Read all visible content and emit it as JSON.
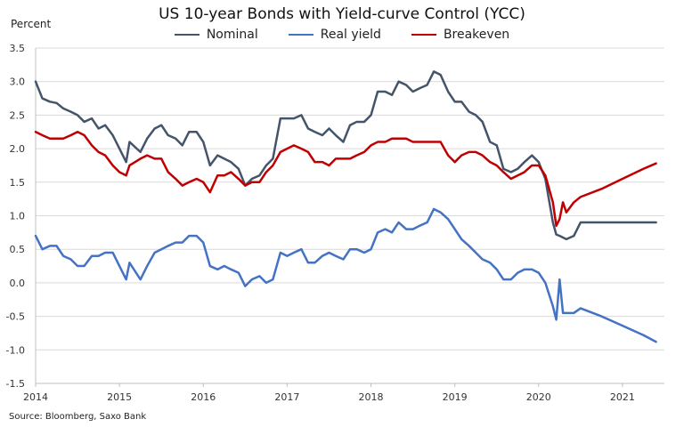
{
  "chart_data": {
    "type": "line",
    "title": "US 10-year Bonds with Yield-curve Control (YCC)",
    "y_unit": "Percent",
    "ylim": [
      -1.5,
      3.5
    ],
    "xlim": [
      2014,
      2021.5
    ],
    "y_ticks": [
      "3.5",
      "3.0",
      "2.5",
      "2.0",
      "1.5",
      "1.0",
      "0.5",
      "0.0",
      "-0.5",
      "-1.0",
      "-1.5"
    ],
    "x_ticks": [
      "2014",
      "2015",
      "2016",
      "2017",
      "2018",
      "2019",
      "2020",
      "2021"
    ],
    "grid": true,
    "legend": "top-center",
    "source": "Source: Bloomberg, Saxo Bank",
    "series": [
      {
        "name": "Nominal",
        "color": "#44546a",
        "points": [
          [
            2014.0,
            3.0
          ],
          [
            2014.08,
            2.75
          ],
          [
            2014.17,
            2.7
          ],
          [
            2014.25,
            2.68
          ],
          [
            2014.33,
            2.6
          ],
          [
            2014.42,
            2.55
          ],
          [
            2014.5,
            2.5
          ],
          [
            2014.58,
            2.4
          ],
          [
            2014.67,
            2.45
          ],
          [
            2014.75,
            2.3
          ],
          [
            2014.83,
            2.35
          ],
          [
            2014.92,
            2.2
          ],
          [
            2015.0,
            2.0
          ],
          [
            2015.08,
            1.8
          ],
          [
            2015.12,
            2.1
          ],
          [
            2015.25,
            1.95
          ],
          [
            2015.33,
            2.15
          ],
          [
            2015.42,
            2.3
          ],
          [
            2015.5,
            2.35
          ],
          [
            2015.58,
            2.2
          ],
          [
            2015.67,
            2.15
          ],
          [
            2015.75,
            2.05
          ],
          [
            2015.83,
            2.25
          ],
          [
            2015.92,
            2.25
          ],
          [
            2016.0,
            2.1
          ],
          [
            2016.08,
            1.75
          ],
          [
            2016.17,
            1.9
          ],
          [
            2016.25,
            1.85
          ],
          [
            2016.33,
            1.8
          ],
          [
            2016.42,
            1.7
          ],
          [
            2016.5,
            1.45
          ],
          [
            2016.58,
            1.55
          ],
          [
            2016.67,
            1.6
          ],
          [
            2016.75,
            1.75
          ],
          [
            2016.83,
            1.85
          ],
          [
            2016.92,
            2.45
          ],
          [
            2017.0,
            2.45
          ],
          [
            2017.08,
            2.45
          ],
          [
            2017.17,
            2.5
          ],
          [
            2017.25,
            2.3
          ],
          [
            2017.33,
            2.25
          ],
          [
            2017.42,
            2.2
          ],
          [
            2017.5,
            2.3
          ],
          [
            2017.58,
            2.2
          ],
          [
            2017.67,
            2.1
          ],
          [
            2017.75,
            2.35
          ],
          [
            2017.83,
            2.4
          ],
          [
            2017.92,
            2.4
          ],
          [
            2018.0,
            2.5
          ],
          [
            2018.08,
            2.85
          ],
          [
            2018.17,
            2.85
          ],
          [
            2018.25,
            2.8
          ],
          [
            2018.33,
            3.0
          ],
          [
            2018.42,
            2.95
          ],
          [
            2018.5,
            2.85
          ],
          [
            2018.58,
            2.9
          ],
          [
            2018.67,
            2.95
          ],
          [
            2018.75,
            3.15
          ],
          [
            2018.83,
            3.1
          ],
          [
            2018.92,
            2.85
          ],
          [
            2019.0,
            2.7
          ],
          [
            2019.08,
            2.7
          ],
          [
            2019.17,
            2.55
          ],
          [
            2019.25,
            2.5
          ],
          [
            2019.33,
            2.4
          ],
          [
            2019.42,
            2.1
          ],
          [
            2019.5,
            2.05
          ],
          [
            2019.58,
            1.7
          ],
          [
            2019.67,
            1.65
          ],
          [
            2019.75,
            1.7
          ],
          [
            2019.83,
            1.8
          ],
          [
            2019.92,
            1.9
          ],
          [
            2020.0,
            1.8
          ],
          [
            2020.08,
            1.55
          ],
          [
            2020.17,
            0.9
          ],
          [
            2020.21,
            0.72
          ],
          [
            2020.25,
            0.7
          ],
          [
            2020.33,
            0.65
          ],
          [
            2020.42,
            0.7
          ],
          [
            2020.5,
            0.9
          ],
          [
            2020.75,
            0.9
          ],
          [
            2021.0,
            0.9
          ],
          [
            2021.25,
            0.9
          ],
          [
            2021.4,
            0.9
          ]
        ]
      },
      {
        "name": "Real yield",
        "color": "#4472c4",
        "points": [
          [
            2014.0,
            0.7
          ],
          [
            2014.08,
            0.5
          ],
          [
            2014.17,
            0.55
          ],
          [
            2014.25,
            0.55
          ],
          [
            2014.33,
            0.4
          ],
          [
            2014.42,
            0.35
          ],
          [
            2014.5,
            0.25
          ],
          [
            2014.58,
            0.25
          ],
          [
            2014.67,
            0.4
          ],
          [
            2014.75,
            0.4
          ],
          [
            2014.83,
            0.45
          ],
          [
            2014.92,
            0.45
          ],
          [
            2015.0,
            0.25
          ],
          [
            2015.08,
            0.05
          ],
          [
            2015.12,
            0.3
          ],
          [
            2015.25,
            0.05
          ],
          [
            2015.33,
            0.25
          ],
          [
            2015.42,
            0.45
          ],
          [
            2015.5,
            0.5
          ],
          [
            2015.58,
            0.55
          ],
          [
            2015.67,
            0.6
          ],
          [
            2015.75,
            0.6
          ],
          [
            2015.83,
            0.7
          ],
          [
            2015.92,
            0.7
          ],
          [
            2016.0,
            0.6
          ],
          [
            2016.08,
            0.25
          ],
          [
            2016.17,
            0.2
          ],
          [
            2016.25,
            0.25
          ],
          [
            2016.33,
            0.2
          ],
          [
            2016.42,
            0.15
          ],
          [
            2016.5,
            -0.05
          ],
          [
            2016.58,
            0.05
          ],
          [
            2016.67,
            0.1
          ],
          [
            2016.75,
            0.0
          ],
          [
            2016.83,
            0.05
          ],
          [
            2016.92,
            0.45
          ],
          [
            2017.0,
            0.4
          ],
          [
            2017.08,
            0.45
          ],
          [
            2017.17,
            0.5
          ],
          [
            2017.25,
            0.3
          ],
          [
            2017.33,
            0.3
          ],
          [
            2017.42,
            0.4
          ],
          [
            2017.5,
            0.45
          ],
          [
            2017.58,
            0.4
          ],
          [
            2017.67,
            0.35
          ],
          [
            2017.75,
            0.5
          ],
          [
            2017.83,
            0.5
          ],
          [
            2017.92,
            0.45
          ],
          [
            2018.0,
            0.5
          ],
          [
            2018.08,
            0.75
          ],
          [
            2018.17,
            0.8
          ],
          [
            2018.25,
            0.75
          ],
          [
            2018.33,
            0.9
          ],
          [
            2018.42,
            0.8
          ],
          [
            2018.5,
            0.8
          ],
          [
            2018.58,
            0.85
          ],
          [
            2018.67,
            0.9
          ],
          [
            2018.75,
            1.1
          ],
          [
            2018.83,
            1.05
          ],
          [
            2018.92,
            0.95
          ],
          [
            2019.0,
            0.8
          ],
          [
            2019.08,
            0.65
          ],
          [
            2019.17,
            0.55
          ],
          [
            2019.25,
            0.45
          ],
          [
            2019.33,
            0.35
          ],
          [
            2019.42,
            0.3
          ],
          [
            2019.5,
            0.2
          ],
          [
            2019.58,
            0.05
          ],
          [
            2019.67,
            0.05
          ],
          [
            2019.75,
            0.15
          ],
          [
            2019.83,
            0.2
          ],
          [
            2019.92,
            0.2
          ],
          [
            2020.0,
            0.15
          ],
          [
            2020.08,
            0.0
          ],
          [
            2020.17,
            -0.35
          ],
          [
            2020.21,
            -0.55
          ],
          [
            2020.25,
            0.05
          ],
          [
            2020.29,
            -0.45
          ],
          [
            2020.33,
            -0.45
          ],
          [
            2020.42,
            -0.45
          ],
          [
            2020.5,
            -0.38
          ],
          [
            2020.75,
            -0.5
          ],
          [
            2021.0,
            -0.64
          ],
          [
            2021.25,
            -0.78
          ],
          [
            2021.4,
            -0.88
          ]
        ]
      },
      {
        "name": "Breakeven",
        "color": "#c00000",
        "points": [
          [
            2014.0,
            2.25
          ],
          [
            2014.08,
            2.2
          ],
          [
            2014.17,
            2.15
          ],
          [
            2014.25,
            2.15
          ],
          [
            2014.33,
            2.15
          ],
          [
            2014.42,
            2.2
          ],
          [
            2014.5,
            2.25
          ],
          [
            2014.58,
            2.2
          ],
          [
            2014.67,
            2.05
          ],
          [
            2014.75,
            1.95
          ],
          [
            2014.83,
            1.9
          ],
          [
            2014.92,
            1.75
          ],
          [
            2015.0,
            1.65
          ],
          [
            2015.08,
            1.6
          ],
          [
            2015.12,
            1.75
          ],
          [
            2015.25,
            1.85
          ],
          [
            2015.33,
            1.9
          ],
          [
            2015.42,
            1.85
          ],
          [
            2015.5,
            1.85
          ],
          [
            2015.58,
            1.65
          ],
          [
            2015.67,
            1.55
          ],
          [
            2015.75,
            1.45
          ],
          [
            2015.83,
            1.5
          ],
          [
            2015.92,
            1.55
          ],
          [
            2016.0,
            1.5
          ],
          [
            2016.08,
            1.35
          ],
          [
            2016.17,
            1.6
          ],
          [
            2016.25,
            1.6
          ],
          [
            2016.33,
            1.65
          ],
          [
            2016.42,
            1.55
          ],
          [
            2016.5,
            1.45
          ],
          [
            2016.58,
            1.5
          ],
          [
            2016.67,
            1.5
          ],
          [
            2016.75,
            1.65
          ],
          [
            2016.83,
            1.75
          ],
          [
            2016.92,
            1.95
          ],
          [
            2017.0,
            2.0
          ],
          [
            2017.08,
            2.05
          ],
          [
            2017.17,
            2.0
          ],
          [
            2017.25,
            1.95
          ],
          [
            2017.33,
            1.8
          ],
          [
            2017.42,
            1.8
          ],
          [
            2017.5,
            1.75
          ],
          [
            2017.58,
            1.85
          ],
          [
            2017.67,
            1.85
          ],
          [
            2017.75,
            1.85
          ],
          [
            2017.83,
            1.9
          ],
          [
            2017.92,
            1.95
          ],
          [
            2018.0,
            2.05
          ],
          [
            2018.08,
            2.1
          ],
          [
            2018.17,
            2.1
          ],
          [
            2018.25,
            2.15
          ],
          [
            2018.33,
            2.15
          ],
          [
            2018.42,
            2.15
          ],
          [
            2018.5,
            2.1
          ],
          [
            2018.58,
            2.1
          ],
          [
            2018.67,
            2.1
          ],
          [
            2018.75,
            2.1
          ],
          [
            2018.83,
            2.1
          ],
          [
            2018.92,
            1.9
          ],
          [
            2019.0,
            1.8
          ],
          [
            2019.08,
            1.9
          ],
          [
            2019.17,
            1.95
          ],
          [
            2019.25,
            1.95
          ],
          [
            2019.33,
            1.9
          ],
          [
            2019.42,
            1.8
          ],
          [
            2019.5,
            1.75
          ],
          [
            2019.58,
            1.65
          ],
          [
            2019.67,
            1.55
          ],
          [
            2019.75,
            1.6
          ],
          [
            2019.83,
            1.65
          ],
          [
            2019.92,
            1.75
          ],
          [
            2020.0,
            1.75
          ],
          [
            2020.08,
            1.6
          ],
          [
            2020.17,
            1.2
          ],
          [
            2020.21,
            0.85
          ],
          [
            2020.25,
            0.95
          ],
          [
            2020.29,
            1.2
          ],
          [
            2020.33,
            1.05
          ],
          [
            2020.42,
            1.2
          ],
          [
            2020.5,
            1.28
          ],
          [
            2020.75,
            1.4
          ],
          [
            2021.0,
            1.55
          ],
          [
            2021.25,
            1.7
          ],
          [
            2021.4,
            1.78
          ]
        ]
      }
    ]
  }
}
